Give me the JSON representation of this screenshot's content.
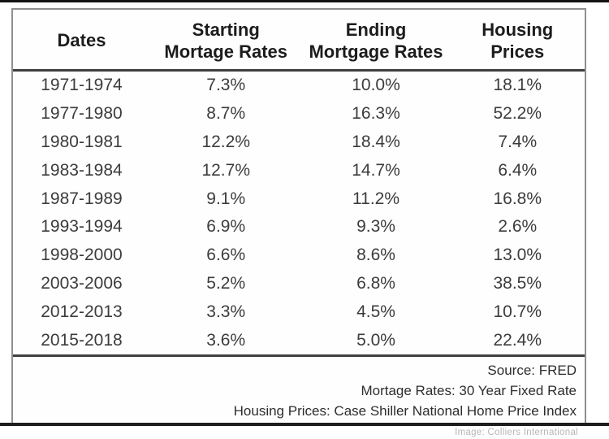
{
  "table": {
    "header_display": [
      {
        "line1": "Dates",
        "line2": ""
      },
      {
        "line1": "Starting",
        "line2": "Mortage Rates"
      },
      {
        "line1": "Ending",
        "line2": "Mortgage Rates"
      },
      {
        "line1": "Housing",
        "line2": "Prices"
      }
    ]
  },
  "chart_data": {
    "type": "table",
    "columns": [
      "Dates",
      "Starting Mortage Rates",
      "Ending Mortgage Rates",
      "Housing Prices"
    ],
    "rows": [
      [
        "1971-1974",
        "7.3%",
        "10.0%",
        "18.1%"
      ],
      [
        "1977-1980",
        "8.7%",
        "16.3%",
        "52.2%"
      ],
      [
        "1980-1981",
        "12.2%",
        "18.4%",
        "7.4%"
      ],
      [
        "1983-1984",
        "12.7%",
        "14.7%",
        "6.4%"
      ],
      [
        "1987-1989",
        "9.1%",
        "11.2%",
        "16.8%"
      ],
      [
        "1993-1994",
        "6.9%",
        "9.3%",
        "2.6%"
      ],
      [
        "1998-2000",
        "6.6%",
        "8.6%",
        "13.0%"
      ],
      [
        "2003-2006",
        "5.2%",
        "6.8%",
        "38.5%"
      ],
      [
        "2012-2013",
        "3.3%",
        "4.5%",
        "10.7%"
      ],
      [
        "2015-2018",
        "3.6%",
        "5.0%",
        "22.4%"
      ]
    ],
    "notes": [
      "Source: FRED",
      "Mortage Rates: 30 Year Fixed Rate",
      "Housing Prices: Case Shiller National Home Price Index"
    ]
  },
  "credit": "Image: Colliers International",
  "colors": {
    "header_text": "#1c1c1c",
    "data_text": "#3c3c3c",
    "rule_dark": "#404040",
    "frame_border": "#8f8f8f",
    "credit_text": "#b6b6b6"
  }
}
